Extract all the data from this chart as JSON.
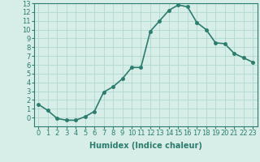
{
  "x": [
    0,
    1,
    2,
    3,
    4,
    5,
    6,
    7,
    8,
    9,
    10,
    11,
    12,
    13,
    14,
    15,
    16,
    17,
    18,
    19,
    20,
    21,
    22,
    23
  ],
  "y": [
    1.5,
    0.8,
    -0.1,
    -0.3,
    -0.3,
    0.1,
    0.7,
    2.9,
    3.5,
    4.4,
    5.7,
    5.7,
    9.8,
    11.0,
    12.2,
    12.8,
    12.6,
    10.8,
    10.0,
    8.5,
    8.4,
    7.3,
    6.8,
    6.3
  ],
  "line_color": "#2d7d6e",
  "marker_color": "#2d7d6e",
  "bg_color": "#d6ede8",
  "grid_color": "#b0d8d0",
  "xlabel": "Humidex (Indice chaleur)",
  "xlim": [
    -0.5,
    23.5
  ],
  "ylim": [
    -1,
    13
  ],
  "xticks": [
    0,
    1,
    2,
    3,
    4,
    5,
    6,
    7,
    8,
    9,
    10,
    11,
    12,
    13,
    14,
    15,
    16,
    17,
    18,
    19,
    20,
    21,
    22,
    23
  ],
  "yticks": [
    0,
    1,
    2,
    3,
    4,
    5,
    6,
    7,
    8,
    9,
    10,
    11,
    12,
    13
  ],
  "xlabel_fontsize": 7,
  "tick_fontsize": 6,
  "line_width": 1.2,
  "marker_size": 2.5
}
